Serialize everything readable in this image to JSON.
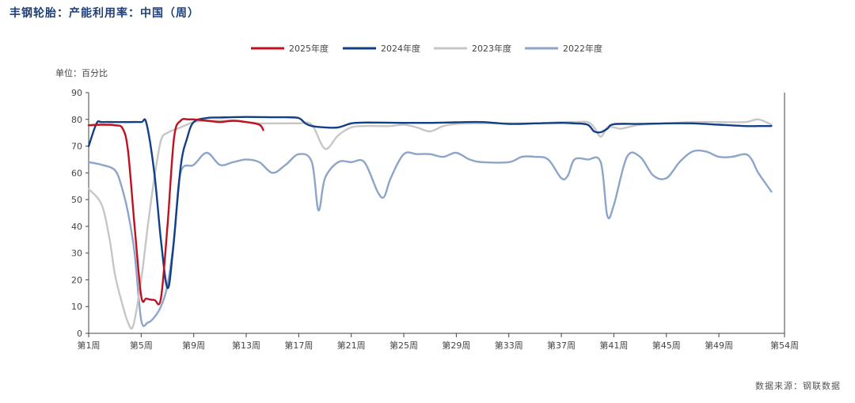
{
  "header": {
    "title": "丰钢轮胎：产能利用率：中国（周）"
  },
  "footer": {
    "source": "数据来源：钢联数据"
  },
  "colors": {
    "2025": "#c0111f",
    "2024": "#123f86",
    "2023": "#c6c6c6",
    "2022": "#8ca5c8",
    "axis": "#444444"
  },
  "chart_data": {
    "type": "line",
    "unit_label": "单位：百分比",
    "ylim": [
      0,
      90
    ],
    "yticks": [
      0,
      10,
      20,
      30,
      40,
      50,
      60,
      70,
      80,
      90
    ],
    "xlim": [
      1,
      54
    ],
    "xticks": [
      1,
      5,
      9,
      13,
      17,
      21,
      25,
      29,
      33,
      37,
      41,
      45,
      49,
      54
    ],
    "xtick_labels": [
      "第1周",
      "第5周",
      "第9周",
      "第13周",
      "第17周",
      "第21周",
      "第25周",
      "第29周",
      "第33周",
      "第37周",
      "第41周",
      "第45周",
      "第49周",
      "第54周"
    ],
    "legend_position": "top-center",
    "series": [
      {
        "name": "2025年度",
        "color_key": "2025",
        "x": [
          1,
          2,
          3,
          3.6,
          4,
          4.5,
          5,
          5.4,
          6,
          6.5,
          7,
          7.5,
          8,
          8.6,
          9,
          10,
          11,
          12,
          13,
          14,
          14.3
        ],
        "y": [
          77.8,
          78,
          77.8,
          76.5,
          68,
          40,
          14,
          13,
          12.5,
          13,
          40,
          73,
          79.5,
          80,
          80,
          79.5,
          79,
          79.5,
          79,
          78,
          76
        ]
      },
      {
        "name": "2024年度",
        "color_key": "2024",
        "x": [
          1,
          1.6,
          2,
          3,
          4,
          5,
          5.4,
          6,
          6.5,
          7,
          7.4,
          8,
          8.5,
          9,
          10,
          11,
          13,
          15,
          16,
          17,
          17.5,
          18,
          19,
          20,
          21,
          22,
          23,
          25,
          27,
          29,
          31,
          33,
          35,
          37,
          38,
          39,
          39.5,
          40,
          40.5,
          41,
          43,
          45,
          47,
          49,
          51,
          52,
          53
        ],
        "y": [
          70,
          78.5,
          79,
          79,
          79,
          79,
          78.5,
          60,
          35,
          17,
          30,
          62,
          73,
          79,
          80.5,
          80.7,
          80.9,
          80.8,
          80.8,
          80.5,
          78.5,
          77.5,
          77,
          77,
          78.5,
          78.8,
          78.8,
          78.7,
          78.7,
          78.9,
          79,
          78.3,
          78.5,
          78.7,
          78.5,
          78,
          75.5,
          75.2,
          76.5,
          78.2,
          78.3,
          78.5,
          78.5,
          78,
          77.5,
          77.5,
          77.5
        ]
      },
      {
        "name": "2023年度",
        "color_key": "2023",
        "x": [
          1,
          2,
          2.6,
          3,
          3.5,
          4,
          4.4,
          5,
          5.5,
          6,
          6.5,
          7,
          8,
          9,
          10,
          11,
          12,
          13,
          14,
          15,
          16,
          17,
          18,
          19,
          20,
          21,
          22,
          23,
          24,
          25,
          26,
          27,
          28,
          29,
          30,
          31,
          33,
          35,
          37,
          38,
          39,
          39.5,
          40,
          40.5,
          41,
          41.5,
          42,
          43,
          45,
          47,
          49,
          51,
          52,
          53
        ],
        "y": [
          54,
          48,
          35,
          22,
          12,
          4,
          3,
          20,
          40,
          58,
          72,
          75,
          77,
          79,
          79.5,
          79.5,
          79.5,
          79,
          78.5,
          78.5,
          78.5,
          78.5,
          78,
          69,
          74,
          77,
          77.5,
          77.5,
          77.5,
          78,
          77,
          75.5,
          77.5,
          78.3,
          78.5,
          78.5,
          78.5,
          78.5,
          79,
          79,
          79,
          77,
          73.5,
          77,
          77,
          76.5,
          77,
          78,
          78.5,
          79,
          79,
          79,
          80,
          78
        ]
      },
      {
        "name": "2022年度",
        "color_key": "2022",
        "x": [
          1,
          2,
          3,
          3.5,
          4,
          4.5,
          5,
          5.5,
          6,
          6.5,
          7,
          7.5,
          8,
          9,
          10,
          11,
          12,
          13,
          14,
          15,
          16,
          17,
          18,
          18.5,
          19,
          20,
          21,
          22,
          23,
          23.5,
          24,
          25,
          26,
          27,
          28,
          29,
          30,
          31,
          33,
          34,
          35,
          36,
          37,
          37.5,
          38,
          39,
          40,
          40.5,
          41,
          42,
          43,
          44,
          45,
          46,
          47,
          48,
          49,
          50,
          51,
          51.5,
          52,
          53
        ],
        "y": [
          64,
          63,
          61,
          55,
          45,
          30,
          5,
          4,
          6,
          10,
          18,
          35,
          60,
          63,
          67.5,
          63,
          64,
          65,
          64,
          60,
          63,
          67,
          64,
          46,
          58,
          64,
          64,
          64,
          53,
          51,
          58,
          67,
          67,
          67,
          66,
          67.5,
          65,
          64,
          64,
          66,
          66,
          65,
          58,
          59,
          65,
          65,
          64,
          44,
          48,
          66,
          66,
          59,
          58,
          64,
          68,
          68,
          66,
          66,
          67,
          65,
          60,
          53
        ]
      }
    ]
  }
}
